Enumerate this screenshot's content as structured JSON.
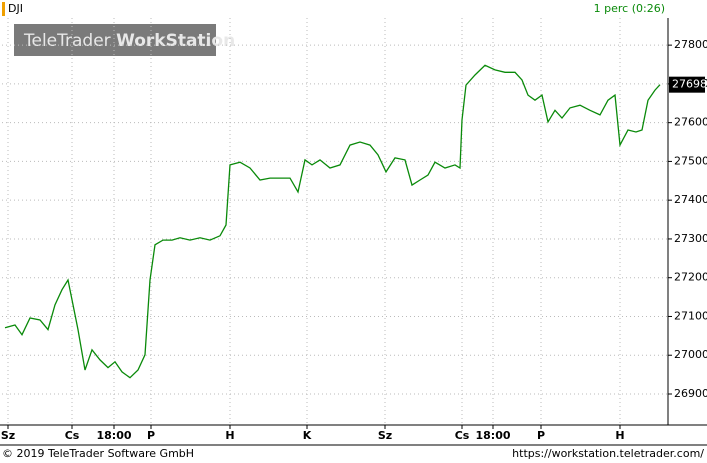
{
  "header": {
    "symbol": "DJI",
    "interval": "1 perc (0:26)"
  },
  "watermark": {
    "brand": "TeleTrader",
    "product": "WorkStation"
  },
  "footer": {
    "copyright": "© 2019 TeleTrader Software GmbH",
    "url": "https://workstation.teletrader.com/"
  },
  "chart_data": {
    "type": "line",
    "grid": true,
    "x": [
      3,
      13,
      20,
      28,
      38,
      46,
      53,
      60,
      66,
      70,
      76,
      83,
      90,
      98,
      106,
      113,
      120,
      128,
      136,
      143,
      148,
      153,
      161,
      170,
      178,
      188,
      198,
      208,
      218,
      224,
      228,
      238,
      248,
      258,
      268,
      278,
      288,
      296,
      303,
      310,
      318,
      328,
      338,
      348,
      358,
      368,
      376,
      384,
      393,
      403,
      410,
      418,
      426,
      433,
      443,
      453,
      458,
      460,
      464,
      473,
      483,
      493,
      503,
      513,
      520,
      526,
      533,
      540,
      546,
      553,
      560,
      568,
      578,
      588,
      598,
      606,
      613,
      618,
      626,
      634,
      640,
      646,
      653,
      658
    ],
    "series": [
      {
        "name": "DJI",
        "color": "#0a8a0a",
        "values": [
          27071,
          27078,
          27053,
          27096,
          27091,
          27066,
          27130,
          27169,
          27194,
          27143,
          27066,
          26962,
          27014,
          26988,
          26968,
          26983,
          26957,
          26942,
          26962,
          27001,
          27194,
          27285,
          27297,
          27297,
          27303,
          27297,
          27303,
          27297,
          27308,
          27336,
          27491,
          27498,
          27483,
          27452,
          27457,
          27457,
          27457,
          27421,
          27504,
          27491,
          27504,
          27483,
          27491,
          27542,
          27550,
          27542,
          27517,
          27473,
          27509,
          27504,
          27439,
          27452,
          27465,
          27498,
          27483,
          27491,
          27483,
          27607,
          27697,
          27723,
          27748,
          27736,
          27730,
          27730,
          27710,
          27671,
          27658,
          27671,
          27602,
          27632,
          27612,
          27638,
          27645,
          27632,
          27620,
          27658,
          27671,
          27542,
          27581,
          27576,
          27581,
          27658,
          27684,
          27698
        ]
      }
    ],
    "xlim": [
      0,
      666
    ],
    "ylim": [
      26820,
      27870
    ],
    "yticks": [
      26900,
      27000,
      27100,
      27200,
      27300,
      27400,
      27500,
      27600,
      27700,
      27800
    ],
    "xticks": [
      {
        "value": 6,
        "label": "Sz"
      },
      {
        "value": 70,
        "label": "Cs"
      },
      {
        "value": 112,
        "label": "18:00"
      },
      {
        "value": 149,
        "label": "P"
      },
      {
        "value": 228,
        "label": "H"
      },
      {
        "value": 305,
        "label": "K"
      },
      {
        "value": 383,
        "label": "Sz"
      },
      {
        "value": 460,
        "label": "Cs"
      },
      {
        "value": 491,
        "label": "18:00"
      },
      {
        "value": 539,
        "label": "P"
      },
      {
        "value": 618,
        "label": "H"
      }
    ]
  }
}
